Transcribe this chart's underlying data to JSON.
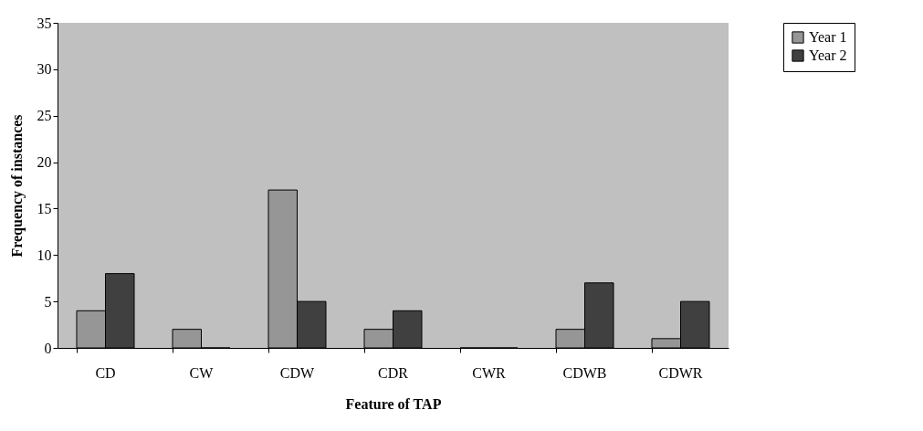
{
  "chart_data": {
    "type": "bar",
    "xlabel": "Feature of TAP",
    "ylabel": "Frequency of instances",
    "categories": [
      "CD",
      "CW",
      "CDW",
      "CDR",
      "CWR",
      "CDWB",
      "CDWR"
    ],
    "series": [
      {
        "name": "Year 1",
        "color": "#969696",
        "values": [
          4,
          2,
          17,
          2,
          0,
          2,
          1
        ]
      },
      {
        "name": "Year 2",
        "color": "#404040",
        "values": [
          8,
          0,
          5,
          4,
          0,
          7,
          5
        ]
      }
    ],
    "ylim": [
      0,
      35
    ],
    "yticks": [
      0,
      5,
      10,
      15,
      20,
      25,
      30,
      35
    ],
    "grid": false,
    "legend": "right"
  }
}
